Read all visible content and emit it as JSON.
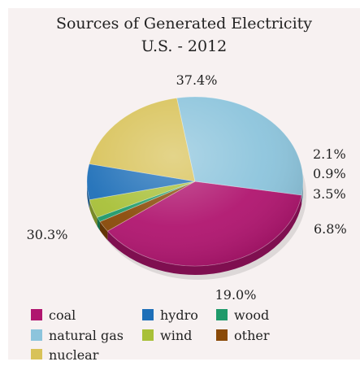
{
  "chart_data": {
    "type": "pie",
    "title": "Sources of Generated Electricity",
    "subtitle": "U.S. - 2012",
    "slices": [
      {
        "label": "coal",
        "value": 37.4,
        "display": "37.4%",
        "color": "#b0156f"
      },
      {
        "label": "other",
        "value": 2.1,
        "display": "2.1%",
        "color": "#8a4a08"
      },
      {
        "label": "wood",
        "value": 0.9,
        "display": "0.9%",
        "color": "#1f9a6a"
      },
      {
        "label": "wind",
        "value": 3.5,
        "display": "3.5%",
        "color": "#a8c038"
      },
      {
        "label": "hydro",
        "value": 6.8,
        "display": "6.8%",
        "color": "#1e6fb8"
      },
      {
        "label": "nuclear",
        "value": 19.0,
        "display": "19.0%",
        "color": "#d8c258"
      },
      {
        "label": "natural gas",
        "value": 30.3,
        "display": "30.3%",
        "color": "#8cc4dc"
      }
    ],
    "legend": [
      {
        "label": "coal",
        "color": "#b0156f"
      },
      {
        "label": "natural gas",
        "color": "#8cc4dc"
      },
      {
        "label": "nuclear",
        "color": "#d8c258"
      },
      {
        "label": "hydro",
        "color": "#1e6fb8"
      },
      {
        "label": "wind",
        "color": "#a8c038"
      },
      {
        "label": "wood",
        "color": "#1f9a6a"
      },
      {
        "label": "other",
        "color": "#8a4a08"
      }
    ],
    "legend_position": "bottom"
  }
}
